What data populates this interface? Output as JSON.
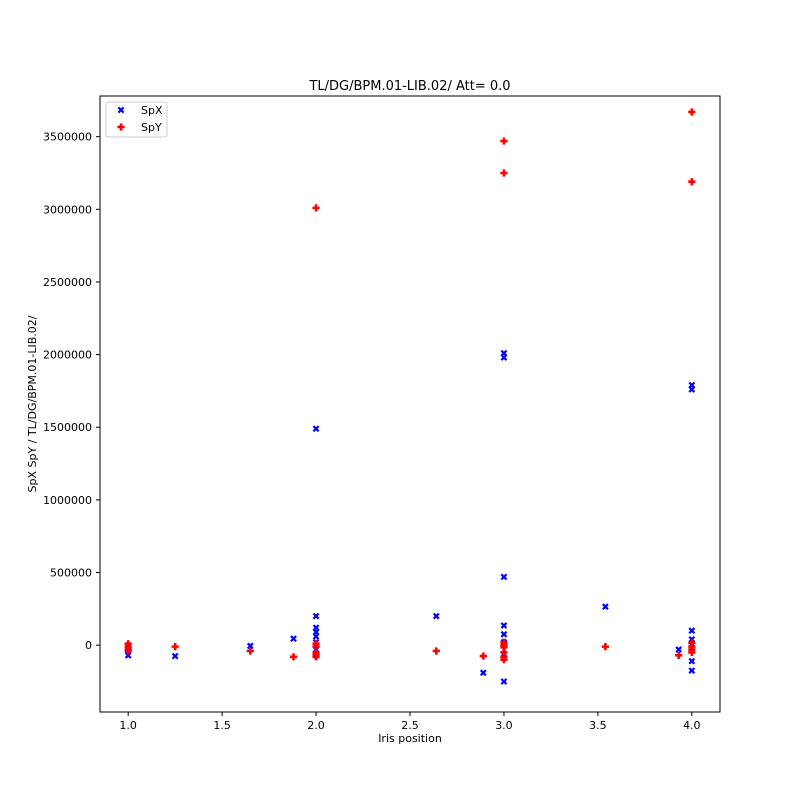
{
  "chart_data": {
    "type": "scatter",
    "title": "TL/DG/BPM.01-LIB.02/ Att= 0.0",
    "xlabel": "Iris position",
    "ylabel": "SpX SpY / TL/DG/BPM.01-LIB.02/",
    "xlim": [
      0.85,
      4.15
    ],
    "ylim": [
      -460000,
      3780000
    ],
    "x_ticks": [
      1.0,
      1.5,
      2.0,
      2.5,
      3.0,
      3.5,
      4.0
    ],
    "x_tick_labels": [
      "1.0",
      "1.5",
      "2.0",
      "2.5",
      "3.0",
      "3.5",
      "4.0"
    ],
    "y_ticks": [
      0,
      500000,
      1000000,
      1500000,
      2000000,
      2500000,
      3000000,
      3500000
    ],
    "y_tick_labels": [
      "0",
      "500000",
      "1000000",
      "1500000",
      "2000000",
      "2500000",
      "3000000",
      "3500000"
    ],
    "grid": false,
    "legend_position": "top-left",
    "series": [
      {
        "name": "SpX",
        "color": "#0000ff",
        "marker": "x",
        "points": [
          [
            1.0,
            -70000
          ],
          [
            1.0,
            -40000
          ],
          [
            1.0,
            -20000
          ],
          [
            1.0,
            -5000
          ],
          [
            1.25,
            -75000
          ],
          [
            1.65,
            -5000
          ],
          [
            1.88,
            45000
          ],
          [
            2.0,
            1490000
          ],
          [
            2.0,
            200000
          ],
          [
            2.0,
            120000
          ],
          [
            2.0,
            90000
          ],
          [
            2.0,
            60000
          ],
          [
            2.0,
            20000
          ],
          [
            2.0,
            -30000
          ],
          [
            2.0,
            -70000
          ],
          [
            2.64,
            200000
          ],
          [
            2.89,
            -190000
          ],
          [
            3.0,
            2010000
          ],
          [
            3.0,
            1980000
          ],
          [
            3.0,
            470000
          ],
          [
            3.0,
            135000
          ],
          [
            3.0,
            75000
          ],
          [
            3.0,
            20000
          ],
          [
            3.0,
            -60000
          ],
          [
            3.0,
            -250000
          ],
          [
            3.54,
            265000
          ],
          [
            3.93,
            -30000
          ],
          [
            4.0,
            1790000
          ],
          [
            4.0,
            1760000
          ],
          [
            4.0,
            100000
          ],
          [
            4.0,
            40000
          ],
          [
            4.0,
            5000
          ],
          [
            4.0,
            -20000
          ],
          [
            4.0,
            -110000
          ],
          [
            4.0,
            -175000
          ]
        ]
      },
      {
        "name": "SpY",
        "color": "#ff0000",
        "marker": "P",
        "points": [
          [
            1.0,
            10000
          ],
          [
            1.0,
            -10000
          ],
          [
            1.0,
            -30000
          ],
          [
            1.0,
            -40000
          ],
          [
            1.25,
            -10000
          ],
          [
            1.65,
            -40000
          ],
          [
            1.88,
            -80000
          ],
          [
            2.0,
            3010000
          ],
          [
            2.0,
            10000
          ],
          [
            2.0,
            -10000
          ],
          [
            2.0,
            -50000
          ],
          [
            2.0,
            -70000
          ],
          [
            2.0,
            -80000
          ],
          [
            2.64,
            -40000
          ],
          [
            2.89,
            -75000
          ],
          [
            3.0,
            3470000
          ],
          [
            3.0,
            3250000
          ],
          [
            3.0,
            20000
          ],
          [
            3.0,
            0
          ],
          [
            3.0,
            -15000
          ],
          [
            3.0,
            -50000
          ],
          [
            3.0,
            -80000
          ],
          [
            3.0,
            -100000
          ],
          [
            3.54,
            -10000
          ],
          [
            3.93,
            -70000
          ],
          [
            4.0,
            3670000
          ],
          [
            4.0,
            3190000
          ],
          [
            4.0,
            15000
          ],
          [
            4.0,
            -10000
          ],
          [
            4.0,
            -30000
          ],
          [
            4.0,
            -50000
          ]
        ]
      }
    ]
  }
}
